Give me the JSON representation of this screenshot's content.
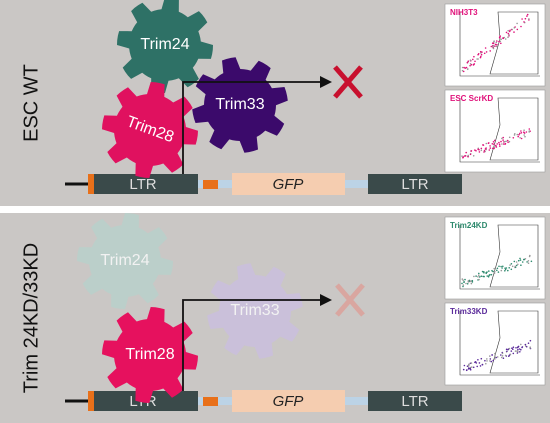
{
  "panels": [
    {
      "label": "ESC WT",
      "proteins": [
        "Trim24",
        "Trim33",
        "Trim28"
      ],
      "construct": [
        "LTR",
        "GFP",
        "LTR"
      ],
      "plots": [
        "NIH3T3",
        "ESC ScrKD"
      ]
    },
    {
      "label": "Trim 24KD/33KD",
      "proteins": [
        "Trim24",
        "Trim33",
        "Trim28"
      ],
      "construct": [
        "LTR",
        "GFP",
        "LTR"
      ],
      "plots": [
        "Trim24KD",
        "Trim33KD"
      ]
    }
  ]
}
